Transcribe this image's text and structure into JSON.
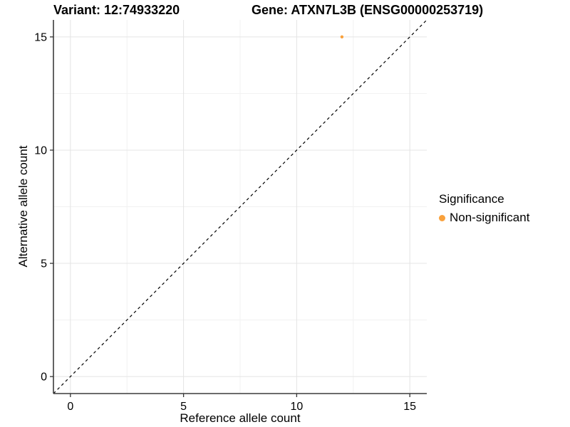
{
  "title": {
    "variant": "Variant: 12:74933220",
    "gene": "Gene: ATXN7L3B (ENSG00000253719)"
  },
  "chart_data": {
    "type": "scatter",
    "title": "Variant: 12:74933220  Gene: ATXN7L3B (ENSG00000253719)",
    "xlabel": "Reference allele count",
    "ylabel": "Alternative allele count",
    "xlim": [
      -0.75,
      15.75
    ],
    "ylim": [
      -0.75,
      15.75
    ],
    "x_ticks": [
      0,
      5,
      10,
      15
    ],
    "y_ticks": [
      0,
      5,
      10,
      15
    ],
    "x_minor_ticks": [
      2.5,
      7.5,
      12.5
    ],
    "y_minor_ticks": [
      2.5,
      7.5,
      12.5
    ],
    "grid": true,
    "reference_line": {
      "slope": 1,
      "intercept": 0,
      "style": "dashed",
      "color": "#000000"
    },
    "series": [
      {
        "name": "Non-significant",
        "color": "#F9A13C",
        "points": [
          {
            "x": 12,
            "y": 15
          }
        ]
      }
    ],
    "legend": {
      "title": "Significance",
      "position": "right",
      "entries": [
        {
          "label": "Non-significant",
          "color": "#F9A13C"
        }
      ]
    },
    "style_colors": {
      "axis_line": "#3c3c3c",
      "tick_mark": "#333333",
      "grid_major": "#e4e4e4",
      "grid_minor": "#f1f1f1",
      "background": "#ffffff"
    }
  }
}
